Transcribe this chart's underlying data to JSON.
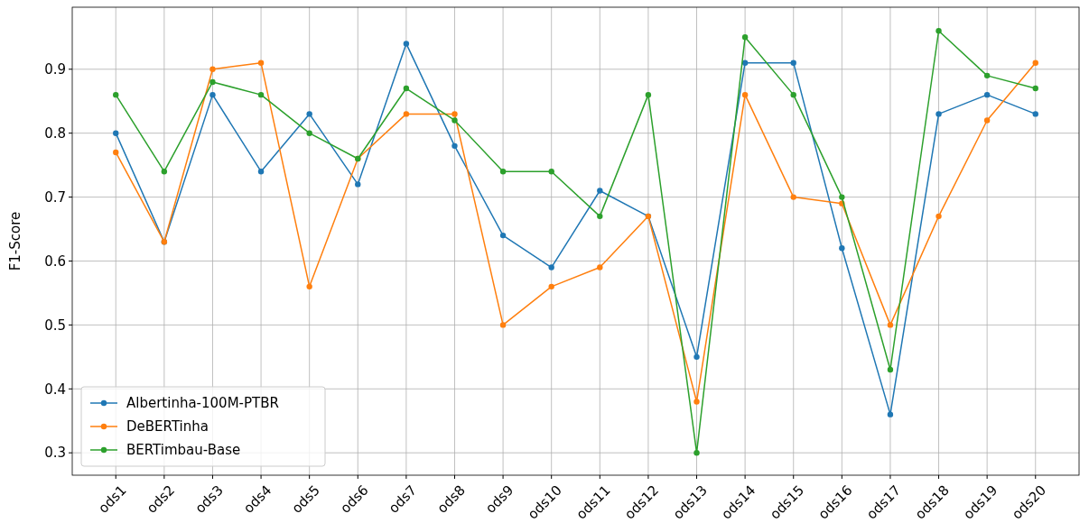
{
  "chart_data": {
    "type": "line",
    "ylabel": "F1-Score",
    "categories": [
      "ods1",
      "ods2",
      "ods3",
      "ods4",
      "ods5",
      "ods6",
      "ods7",
      "ods8",
      "ods9",
      "ods10",
      "ods11",
      "ods12",
      "ods13",
      "ods14",
      "ods15",
      "ods16",
      "ods17",
      "ods18",
      "ods19",
      "ods20"
    ],
    "series": [
      {
        "name": "Albertinha-100M-PTBR",
        "color": "#1f77b4",
        "values": [
          0.8,
          0.63,
          0.86,
          0.74,
          0.83,
          0.72,
          0.94,
          0.78,
          0.64,
          0.59,
          0.71,
          0.67,
          0.45,
          0.91,
          0.91,
          0.62,
          0.36,
          0.83,
          0.86,
          0.83
        ]
      },
      {
        "name": "DeBERTinha",
        "color": "#ff7f0e",
        "values": [
          0.77,
          0.63,
          0.9,
          0.91,
          0.56,
          0.76,
          0.83,
          0.83,
          0.5,
          0.56,
          0.59,
          0.67,
          0.38,
          0.86,
          0.7,
          0.69,
          0.5,
          0.67,
          0.82,
          0.91
        ]
      },
      {
        "name": "BERTimbau-Base",
        "color": "#2ca02c",
        "values": [
          0.86,
          0.74,
          0.88,
          0.86,
          0.8,
          0.76,
          0.87,
          0.82,
          0.74,
          0.74,
          0.67,
          0.86,
          0.3,
          0.95,
          0.86,
          0.7,
          0.43,
          0.96,
          0.89,
          0.87
        ]
      }
    ],
    "ylim": [
      0.265,
      0.997
    ],
    "yticks": [
      0.3,
      0.4,
      0.5,
      0.6,
      0.7,
      0.8,
      0.9
    ],
    "grid": true,
    "legend": "bottom left",
    "marker": "circle",
    "line_style": "solid"
  }
}
